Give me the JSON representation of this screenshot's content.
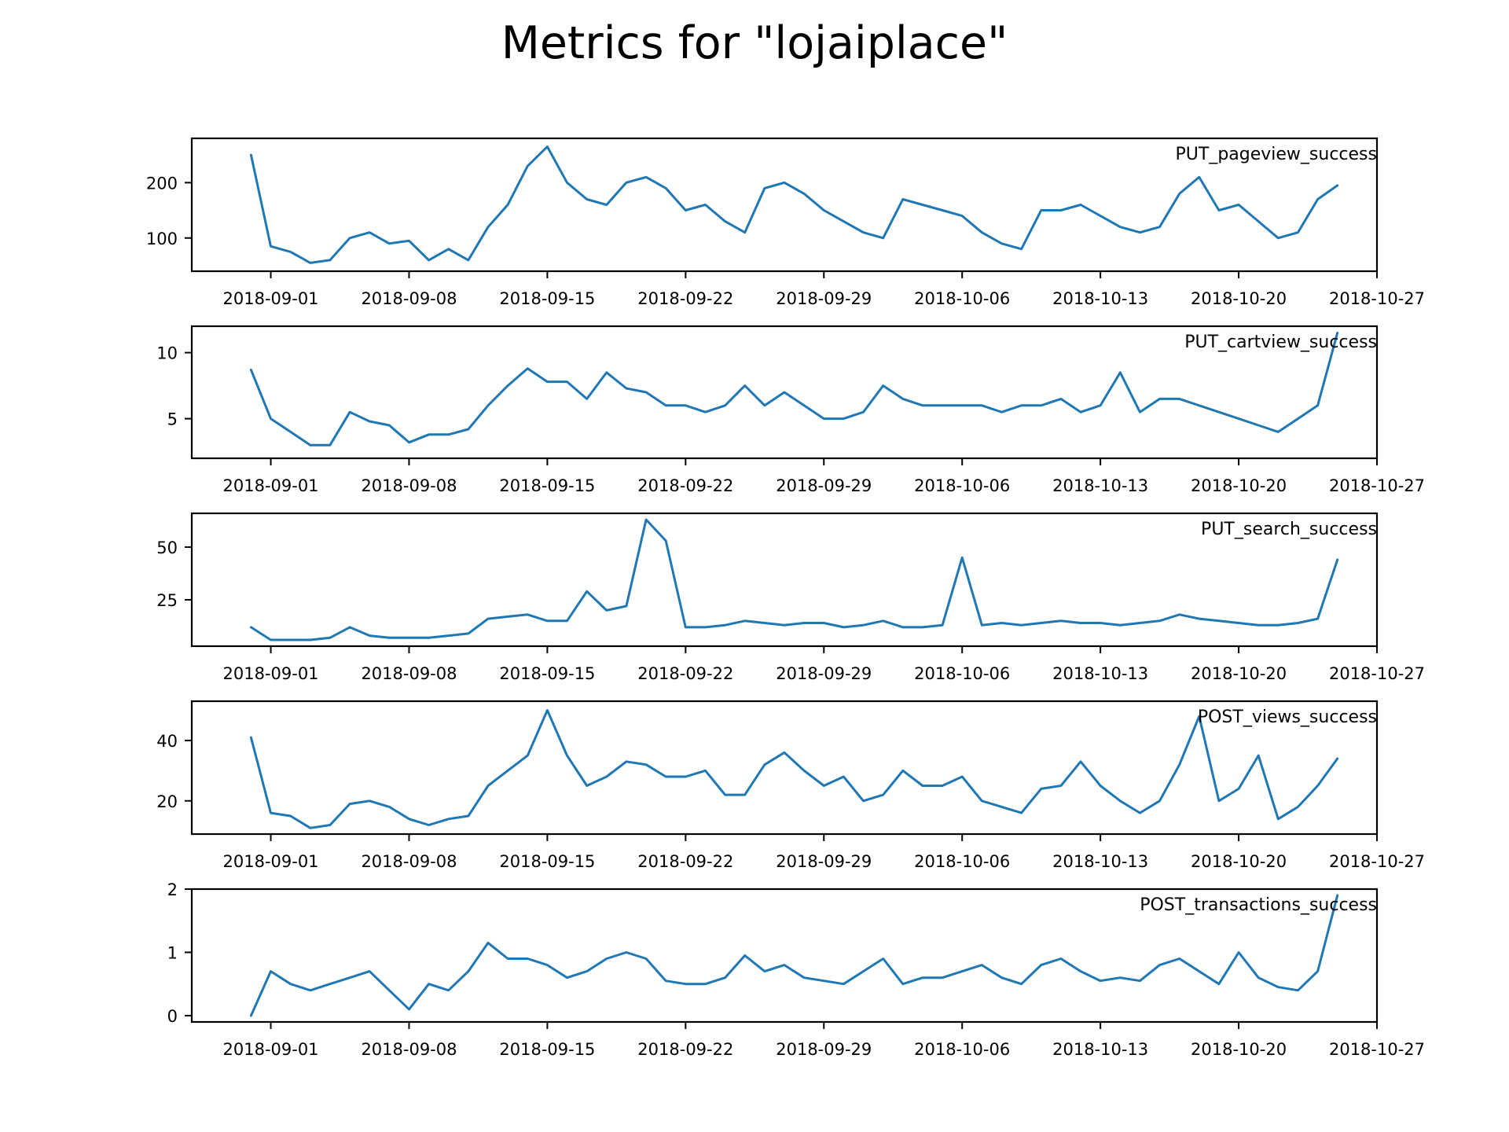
{
  "figure_title": "Metrics for \"lojaiplace\"",
  "colors": {
    "line": "#1f77b4",
    "axes": "#000000",
    "background": "#ffffff"
  },
  "chart_data": [
    {
      "type": "line",
      "title": "PUT_pageview_success",
      "xlabel": "",
      "ylabel": "",
      "x_ticks": [
        "2018-09-01",
        "2018-09-08",
        "2018-09-15",
        "2018-09-22",
        "2018-09-29",
        "2018-10-06",
        "2018-10-13",
        "2018-10-20",
        "2018-10-27"
      ],
      "y_ticks": [
        100,
        200
      ],
      "xlim": [
        "2018-08-28",
        "2018-10-27"
      ],
      "ylim": [
        40,
        280
      ],
      "legend": "top-right",
      "grid": false,
      "series": [
        {
          "x": [
            "2018-08-31",
            "2018-09-01",
            "2018-09-02",
            "2018-09-03",
            "2018-09-04",
            "2018-09-05",
            "2018-09-06",
            "2018-09-07",
            "2018-09-08",
            "2018-09-09",
            "2018-09-10",
            "2018-09-11",
            "2018-09-12",
            "2018-09-13",
            "2018-09-14",
            "2018-09-15",
            "2018-09-16",
            "2018-09-17",
            "2018-09-18",
            "2018-09-19",
            "2018-09-20",
            "2018-09-21",
            "2018-09-22",
            "2018-09-23",
            "2018-09-24",
            "2018-09-25",
            "2018-09-26",
            "2018-09-27",
            "2018-09-28",
            "2018-09-29",
            "2018-09-30",
            "2018-10-01",
            "2018-10-02",
            "2018-10-03",
            "2018-10-04",
            "2018-10-05",
            "2018-10-06",
            "2018-10-07",
            "2018-10-08",
            "2018-10-09",
            "2018-10-10",
            "2018-10-11",
            "2018-10-12",
            "2018-10-13",
            "2018-10-14",
            "2018-10-15",
            "2018-10-16",
            "2018-10-17",
            "2018-10-18",
            "2018-10-19",
            "2018-10-20",
            "2018-10-21",
            "2018-10-22",
            "2018-10-23",
            "2018-10-24",
            "2018-10-25"
          ],
          "values": [
            250,
            85,
            75,
            55,
            60,
            100,
            110,
            90,
            95,
            60,
            80,
            60,
            120,
            160,
            230,
            265,
            200,
            170,
            160,
            200,
            210,
            190,
            150,
            160,
            130,
            110,
            190,
            200,
            180,
            150,
            130,
            110,
            100,
            170,
            160,
            150,
            140,
            110,
            90,
            80,
            150,
            150,
            160,
            140,
            120,
            110,
            120,
            180,
            210,
            150,
            160,
            130,
            100,
            110,
            170,
            195
          ]
        }
      ]
    },
    {
      "type": "line",
      "title": "PUT_cartview_success",
      "xlabel": "",
      "ylabel": "",
      "x_ticks": [
        "2018-09-01",
        "2018-09-08",
        "2018-09-15",
        "2018-09-22",
        "2018-09-29",
        "2018-10-06",
        "2018-10-13",
        "2018-10-20",
        "2018-10-27"
      ],
      "y_ticks": [
        5,
        10
      ],
      "xlim": [
        "2018-08-28",
        "2018-10-27"
      ],
      "ylim": [
        2,
        12
      ],
      "legend": "top-right",
      "grid": false,
      "series": [
        {
          "x": [
            "2018-08-31",
            "2018-09-01",
            "2018-09-02",
            "2018-09-03",
            "2018-09-04",
            "2018-09-05",
            "2018-09-06",
            "2018-09-07",
            "2018-09-08",
            "2018-09-09",
            "2018-09-10",
            "2018-09-11",
            "2018-09-12",
            "2018-09-13",
            "2018-09-14",
            "2018-09-15",
            "2018-09-16",
            "2018-09-17",
            "2018-09-18",
            "2018-09-19",
            "2018-09-20",
            "2018-09-21",
            "2018-09-22",
            "2018-09-23",
            "2018-09-24",
            "2018-09-25",
            "2018-09-26",
            "2018-09-27",
            "2018-09-28",
            "2018-09-29",
            "2018-09-30",
            "2018-10-01",
            "2018-10-02",
            "2018-10-03",
            "2018-10-04",
            "2018-10-05",
            "2018-10-06",
            "2018-10-07",
            "2018-10-08",
            "2018-10-09",
            "2018-10-10",
            "2018-10-11",
            "2018-10-12",
            "2018-10-13",
            "2018-10-14",
            "2018-10-15",
            "2018-10-16",
            "2018-10-17",
            "2018-10-18",
            "2018-10-19",
            "2018-10-20",
            "2018-10-21",
            "2018-10-22",
            "2018-10-23",
            "2018-10-24",
            "2018-10-25"
          ],
          "values": [
            8.7,
            5.0,
            4.0,
            3.0,
            3.0,
            5.5,
            4.8,
            4.5,
            3.2,
            3.8,
            3.8,
            4.2,
            6.0,
            7.5,
            8.8,
            7.8,
            7.8,
            6.5,
            8.5,
            7.3,
            7.0,
            6.0,
            6.0,
            5.5,
            6.0,
            7.5,
            6.0,
            7.0,
            6.0,
            5.0,
            5.0,
            5.5,
            7.5,
            6.5,
            6.0,
            6.0,
            6.0,
            6.0,
            5.5,
            6.0,
            6.0,
            6.5,
            5.5,
            6.0,
            8.5,
            5.5,
            6.5,
            6.5,
            6.0,
            5.5,
            5.0,
            4.5,
            4.0,
            5.0,
            6.0,
            11.5
          ]
        }
      ]
    },
    {
      "type": "line",
      "title": "PUT_search_success",
      "xlabel": "",
      "ylabel": "",
      "x_ticks": [
        "2018-09-01",
        "2018-09-08",
        "2018-09-15",
        "2018-09-22",
        "2018-09-29",
        "2018-10-06",
        "2018-10-13",
        "2018-10-20",
        "2018-10-27"
      ],
      "y_ticks": [
        25,
        50
      ],
      "xlim": [
        "2018-08-28",
        "2018-10-27"
      ],
      "ylim": [
        3,
        66
      ],
      "legend": "top-right",
      "grid": false,
      "series": [
        {
          "x": [
            "2018-08-31",
            "2018-09-01",
            "2018-09-02",
            "2018-09-03",
            "2018-09-04",
            "2018-09-05",
            "2018-09-06",
            "2018-09-07",
            "2018-09-08",
            "2018-09-09",
            "2018-09-10",
            "2018-09-11",
            "2018-09-12",
            "2018-09-13",
            "2018-09-14",
            "2018-09-15",
            "2018-09-16",
            "2018-09-17",
            "2018-09-18",
            "2018-09-19",
            "2018-09-20",
            "2018-09-21",
            "2018-09-22",
            "2018-09-23",
            "2018-09-24",
            "2018-09-25",
            "2018-09-26",
            "2018-09-27",
            "2018-09-28",
            "2018-09-29",
            "2018-09-30",
            "2018-10-01",
            "2018-10-02",
            "2018-10-03",
            "2018-10-04",
            "2018-10-05",
            "2018-10-06",
            "2018-10-07",
            "2018-10-08",
            "2018-10-09",
            "2018-10-10",
            "2018-10-11",
            "2018-10-12",
            "2018-10-13",
            "2018-10-14",
            "2018-10-15",
            "2018-10-16",
            "2018-10-17",
            "2018-10-18",
            "2018-10-19",
            "2018-10-20",
            "2018-10-21",
            "2018-10-22",
            "2018-10-23",
            "2018-10-24",
            "2018-10-25"
          ],
          "values": [
            12,
            6,
            6,
            6,
            7,
            12,
            8,
            7,
            7,
            7,
            8,
            9,
            16,
            17,
            18,
            15,
            15,
            29,
            20,
            22,
            63,
            53,
            12,
            12,
            13,
            15,
            14,
            13,
            14,
            14,
            12,
            13,
            15,
            12,
            12,
            13,
            45,
            13,
            14,
            13,
            14,
            15,
            14,
            14,
            13,
            14,
            15,
            18,
            16,
            15,
            14,
            13,
            13,
            14,
            16,
            44
          ]
        }
      ]
    },
    {
      "type": "line",
      "title": "POST_views_success",
      "xlabel": "",
      "ylabel": "",
      "x_ticks": [
        "2018-09-01",
        "2018-09-08",
        "2018-09-15",
        "2018-09-22",
        "2018-09-29",
        "2018-10-06",
        "2018-10-13",
        "2018-10-20",
        "2018-10-27"
      ],
      "y_ticks": [
        20,
        40
      ],
      "xlim": [
        "2018-08-28",
        "2018-10-27"
      ],
      "ylim": [
        9,
        53
      ],
      "legend": "top-right",
      "grid": false,
      "series": [
        {
          "x": [
            "2018-08-31",
            "2018-09-01",
            "2018-09-02",
            "2018-09-03",
            "2018-09-04",
            "2018-09-05",
            "2018-09-06",
            "2018-09-07",
            "2018-09-08",
            "2018-09-09",
            "2018-09-10",
            "2018-09-11",
            "2018-09-12",
            "2018-09-13",
            "2018-09-14",
            "2018-09-15",
            "2018-09-16",
            "2018-09-17",
            "2018-09-18",
            "2018-09-19",
            "2018-09-20",
            "2018-09-21",
            "2018-09-22",
            "2018-09-23",
            "2018-09-24",
            "2018-09-25",
            "2018-09-26",
            "2018-09-27",
            "2018-09-28",
            "2018-09-29",
            "2018-09-30",
            "2018-10-01",
            "2018-10-02",
            "2018-10-03",
            "2018-10-04",
            "2018-10-05",
            "2018-10-06",
            "2018-10-07",
            "2018-10-08",
            "2018-10-09",
            "2018-10-10",
            "2018-10-11",
            "2018-10-12",
            "2018-10-13",
            "2018-10-14",
            "2018-10-15",
            "2018-10-16",
            "2018-10-17",
            "2018-10-18",
            "2018-10-19",
            "2018-10-20",
            "2018-10-21",
            "2018-10-22",
            "2018-10-23",
            "2018-10-24",
            "2018-10-25"
          ],
          "values": [
            41,
            16,
            15,
            11,
            12,
            19,
            20,
            18,
            14,
            12,
            14,
            15,
            25,
            30,
            35,
            50,
            35,
            25,
            28,
            33,
            32,
            28,
            28,
            30,
            22,
            22,
            32,
            36,
            30,
            25,
            28,
            20,
            22,
            30,
            25,
            25,
            28,
            20,
            18,
            16,
            24,
            25,
            33,
            25,
            20,
            16,
            20,
            32,
            48,
            20,
            24,
            35,
            14,
            18,
            25,
            34
          ]
        }
      ]
    },
    {
      "type": "line",
      "title": "POST_transactions_success",
      "xlabel": "",
      "ylabel": "",
      "x_ticks": [
        "2018-09-01",
        "2018-09-08",
        "2018-09-15",
        "2018-09-22",
        "2018-09-29",
        "2018-10-06",
        "2018-10-13",
        "2018-10-20",
        "2018-10-27"
      ],
      "y_ticks": [
        0,
        1,
        2
      ],
      "xlim": [
        "2018-08-28",
        "2018-10-27"
      ],
      "ylim": [
        -0.1,
        2.0
      ],
      "legend": "top-right",
      "grid": false,
      "series": [
        {
          "x": [
            "2018-08-31",
            "2018-09-01",
            "2018-09-02",
            "2018-09-03",
            "2018-09-04",
            "2018-09-05",
            "2018-09-06",
            "2018-09-07",
            "2018-09-08",
            "2018-09-09",
            "2018-09-10",
            "2018-09-11",
            "2018-09-12",
            "2018-09-13",
            "2018-09-14",
            "2018-09-15",
            "2018-09-16",
            "2018-09-17",
            "2018-09-18",
            "2018-09-19",
            "2018-09-20",
            "2018-09-21",
            "2018-09-22",
            "2018-09-23",
            "2018-09-24",
            "2018-09-25",
            "2018-09-26",
            "2018-09-27",
            "2018-09-28",
            "2018-09-29",
            "2018-09-30",
            "2018-10-01",
            "2018-10-02",
            "2018-10-03",
            "2018-10-04",
            "2018-10-05",
            "2018-10-06",
            "2018-10-07",
            "2018-10-08",
            "2018-10-09",
            "2018-10-10",
            "2018-10-11",
            "2018-10-12",
            "2018-10-13",
            "2018-10-14",
            "2018-10-15",
            "2018-10-16",
            "2018-10-17",
            "2018-10-18",
            "2018-10-19",
            "2018-10-20",
            "2018-10-21",
            "2018-10-22",
            "2018-10-23",
            "2018-10-24",
            "2018-10-25"
          ],
          "values": [
            0.0,
            0.7,
            0.5,
            0.4,
            0.5,
            0.6,
            0.7,
            0.4,
            0.1,
            0.5,
            0.4,
            0.7,
            1.15,
            0.9,
            0.9,
            0.8,
            0.6,
            0.7,
            0.9,
            1.0,
            0.9,
            0.55,
            0.5,
            0.5,
            0.6,
            0.95,
            0.7,
            0.8,
            0.6,
            0.55,
            0.5,
            0.7,
            0.9,
            0.5,
            0.6,
            0.6,
            0.7,
            0.8,
            0.6,
            0.5,
            0.8,
            0.9,
            0.7,
            0.55,
            0.6,
            0.55,
            0.8,
            0.9,
            0.7,
            0.5,
            1.0,
            0.6,
            0.45,
            0.4,
            0.7,
            1.9
          ]
        }
      ]
    }
  ]
}
